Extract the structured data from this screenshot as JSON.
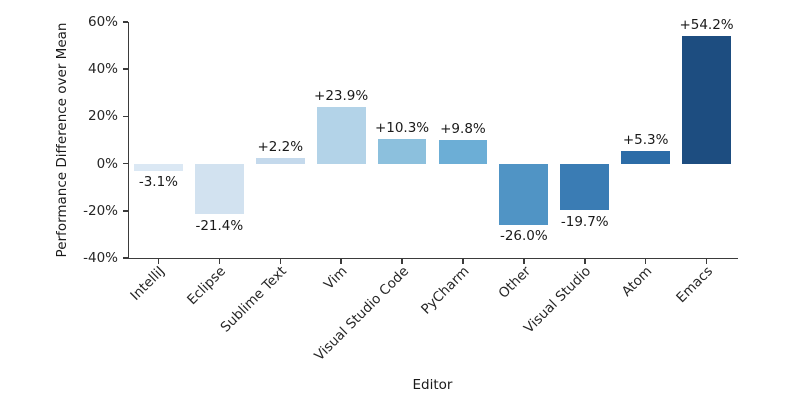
{
  "chart_data": {
    "type": "bar",
    "title": "",
    "xlabel": "Editor",
    "ylabel": "Performance Difference over Mean",
    "categories": [
      "IntelliJ",
      "Eclipse",
      "Sublime Text",
      "Vim",
      "Visual Studio Code",
      "PyCharm",
      "Other",
      "Visual Studio",
      "Atom",
      "Emacs"
    ],
    "values": [
      -3.1,
      -21.4,
      2.2,
      23.9,
      10.3,
      9.8,
      -26.0,
      -19.7,
      5.3,
      54.2
    ],
    "bar_labels": [
      "-3.1%",
      "-21.4%",
      "+2.2%",
      "+23.9%",
      "+10.3%",
      "+9.8%",
      "-26.0%",
      "-19.7%",
      "+5.3%",
      "+54.2%"
    ],
    "bar_colors": [
      "#dbe8f4",
      "#d2e2f0",
      "#c4d9ec",
      "#b3d3e8",
      "#8cc0dd",
      "#6caed6",
      "#5094c5",
      "#3a7cb4",
      "#2c6ca7",
      "#1d4d80"
    ],
    "ylim": [
      -40,
      60
    ],
    "yticks": [
      60,
      40,
      20,
      0,
      -20,
      -40
    ],
    "ytick_labels": [
      "60%",
      "40%",
      "20%",
      "0%",
      "-20%",
      "-40%"
    ],
    "xtick_rotation_deg": 45,
    "grid": false,
    "legend": null,
    "background_color": "#ffffff"
  }
}
